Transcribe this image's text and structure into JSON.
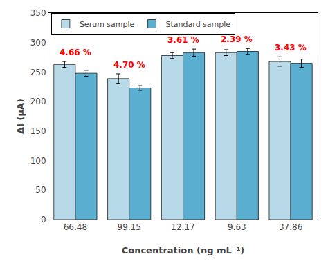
{
  "chart_data": {
    "type": "bar",
    "categories": [
      "66.48",
      "99.15",
      "12.17",
      "9.63",
      "37.86"
    ],
    "series": [
      {
        "name": "Serum sample",
        "color": "#b8d9e8",
        "values": [
          263,
          239,
          278,
          283,
          268
        ],
        "errors": [
          5,
          8,
          5,
          5,
          8
        ]
      },
      {
        "name": "Standard sample",
        "color": "#5aaed0",
        "values": [
          248,
          223,
          283,
          285,
          265
        ],
        "errors": [
          5,
          4,
          6,
          5,
          7
        ]
      }
    ],
    "annotations": [
      {
        "x": "66.48",
        "text": "4.66 %",
        "color": "red"
      },
      {
        "x": "99.15",
        "text": "4.70 %",
        "color": "red"
      },
      {
        "x": "12.17",
        "text": "3.61 %",
        "color": "red"
      },
      {
        "x": "9.63",
        "text": "2.39 %",
        "color": "red"
      },
      {
        "x": "37.86",
        "text": "3.43 %",
        "color": "red"
      }
    ],
    "xlabel": "Concentration (ng mL⁻¹)",
    "ylabel": "ΔI (μA)",
    "ylim": [
      0,
      350
    ],
    "yticks": [
      0,
      50,
      100,
      150,
      200,
      250,
      300,
      350
    ],
    "grid": false,
    "legend": "upper left"
  }
}
